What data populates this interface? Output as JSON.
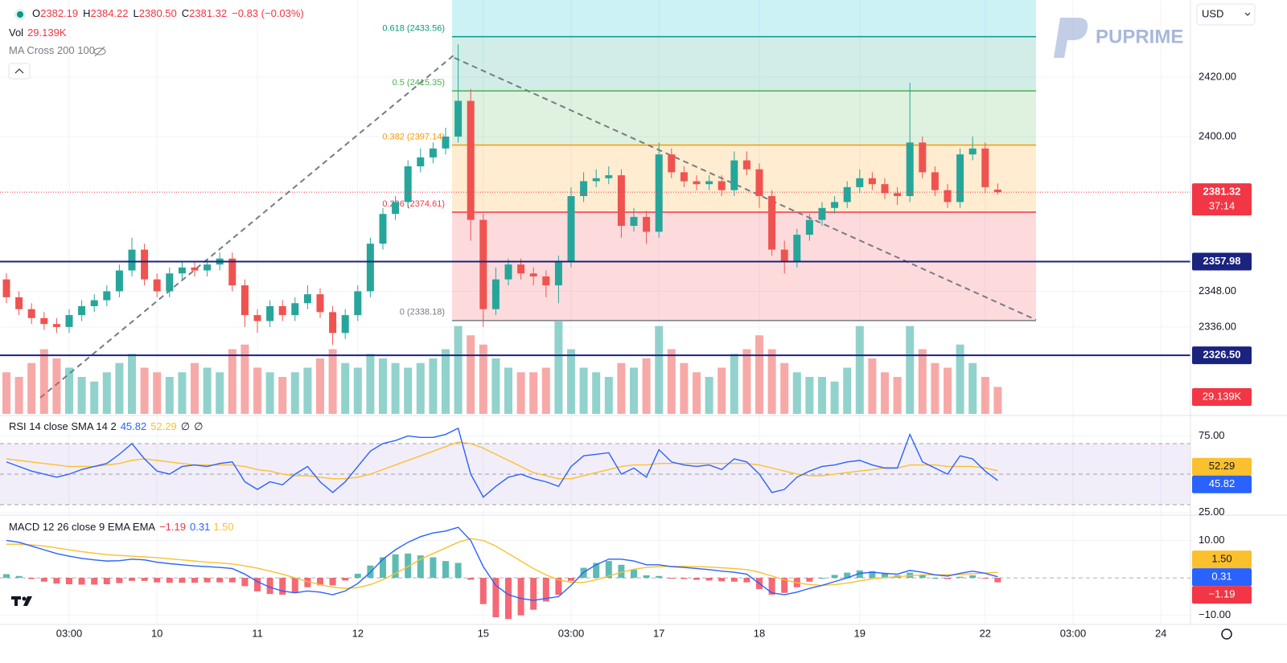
{
  "header": {
    "items": [
      {
        "label": "O",
        "value": "2382.19"
      },
      {
        "label": "H",
        "value": "2384.22"
      },
      {
        "label": "L",
        "value": "2380.50"
      },
      {
        "label": "C",
        "value": "2381.32"
      }
    ],
    "change": "−0.83 (−0.03%)",
    "indicator": "MA Cross 200 100",
    "currency": "USD",
    "brand": "PUPRIME"
  },
  "chart_data": [
    {
      "type": "candlestick",
      "up_color": "#26a69a",
      "down_color": "#ef5350",
      "categories": [
        null,
        null,
        null,
        null,
        null,
        "03:00",
        null,
        null,
        null,
        null,
        null,
        null,
        "10",
        null,
        null,
        null,
        null,
        null,
        null,
        null,
        "11",
        null,
        null,
        null,
        null,
        null,
        null,
        null,
        "12",
        null,
        null,
        null,
        null,
        null,
        null,
        null,
        null,
        null,
        "15",
        null,
        null,
        null,
        null,
        null,
        null,
        "03:00",
        null,
        null,
        null,
        null,
        null,
        null,
        "17",
        null,
        null,
        null,
        null,
        null,
        null,
        null,
        "18",
        null,
        null,
        null,
        null,
        null,
        null,
        null,
        "19",
        null,
        null,
        null,
        null,
        null,
        null,
        null,
        null,
        null,
        "22",
        null
      ],
      "future_labels": [
        "03:00",
        "24"
      ],
      "open": [
        2352,
        2346,
        2342,
        2339,
        2337,
        2336,
        2340,
        2343,
        2345,
        2348,
        2355,
        2362,
        2352,
        2348,
        2354,
        2356,
        2355,
        2357,
        2359,
        2350,
        2340,
        2338,
        2343,
        2340,
        2344,
        2347,
        2341,
        2334,
        2340,
        2348,
        2364,
        2374,
        2378,
        2390,
        2393,
        2396,
        2400,
        2412,
        2372,
        2342,
        2352,
        2357,
        2354,
        2353,
        2350,
        2358,
        2380,
        2385,
        2386,
        2387,
        2370,
        2373,
        2368,
        2394,
        2388,
        2385,
        2384,
        2385,
        2382,
        2392,
        2389,
        2380,
        2362,
        2358,
        2367,
        2372,
        2376,
        2378,
        2383,
        2386,
        2384,
        2381,
        2380,
        2398,
        2388,
        2382,
        2378,
        2394,
        2396,
        2382.19
      ],
      "high": [
        2354,
        2348,
        2344,
        2341,
        2339,
        2342,
        2345,
        2347,
        2350,
        2357,
        2366,
        2364,
        2354,
        2356,
        2358,
        2358,
        2359,
        2361,
        2361,
        2352,
        2342,
        2345,
        2345,
        2346,
        2350,
        2349,
        2343,
        2342,
        2350,
        2366,
        2376,
        2380,
        2392,
        2396,
        2398,
        2403,
        2431,
        2416,
        2374,
        2356,
        2359,
        2359,
        2356,
        2355,
        2360,
        2383,
        2388,
        2389,
        2390,
        2389,
        2376,
        2375,
        2398,
        2396,
        2390,
        2387,
        2387,
        2387,
        2395,
        2395,
        2391,
        2382,
        2365,
        2369,
        2374,
        2378,
        2380,
        2385,
        2389,
        2388,
        2386,
        2383,
        2418,
        2400,
        2390,
        2384,
        2396,
        2400,
        2398,
        2384.22
      ],
      "low": [
        2344,
        2340,
        2337,
        2335,
        2334,
        2334,
        2338,
        2341,
        2343,
        2346,
        2353,
        2350,
        2346,
        2346,
        2352,
        2353,
        2353,
        2355,
        2348,
        2336,
        2334,
        2336,
        2338,
        2338,
        2342,
        2339,
        2330,
        2332,
        2338,
        2346,
        2362,
        2372,
        2376,
        2388,
        2391,
        2394,
        2398,
        2365,
        2336,
        2340,
        2350,
        2352,
        2350,
        2346,
        2344,
        2356,
        2378,
        2383,
        2384,
        2366,
        2368,
        2364,
        2366,
        2386,
        2383,
        2382,
        2382,
        2380,
        2380,
        2387,
        2376,
        2360,
        2354,
        2356,
        2365,
        2370,
        2374,
        2376,
        2381,
        2382,
        2379,
        2377,
        2378,
        2386,
        2380,
        2376,
        2376,
        2392,
        2381,
        2380.5
      ],
      "close": [
        2346,
        2342,
        2339,
        2337,
        2336,
        2340,
        2343,
        2345,
        2348,
        2355,
        2362,
        2352,
        2348,
        2354,
        2356,
        2355,
        2357,
        2359,
        2350,
        2340,
        2338,
        2343,
        2340,
        2344,
        2347,
        2341,
        2334,
        2340,
        2348,
        2364,
        2374,
        2378,
        2390,
        2393,
        2396,
        2400,
        2412,
        2372,
        2342,
        2352,
        2357,
        2354,
        2353,
        2350,
        2358,
        2380,
        2385,
        2386,
        2387,
        2370,
        2373,
        2368,
        2394,
        2388,
        2385,
        2384,
        2385,
        2382,
        2392,
        2389,
        2380,
        2362,
        2358,
        2367,
        2372,
        2376,
        2378,
        2383,
        2386,
        2384,
        2381,
        2380,
        2398,
        2388,
        2382,
        2378,
        2394,
        2396,
        2383,
        2381.32
      ],
      "ylim": [
        2306.8,
        2445.9
      ],
      "yticks": [
        {
          "value": 2420,
          "label": "2420.00"
        },
        {
          "value": 2400,
          "label": "2400.00"
        },
        {
          "value": 2348,
          "label": "2348.00"
        },
        {
          "value": 2336,
          "label": "2336.00"
        }
      ],
      "fib_levels": [
        {
          "label": "0.618 (2433.56)",
          "value": 2433.56,
          "color": "#089981"
        },
        {
          "label": "0.5 (2415.35)",
          "value": 2415.35,
          "color": "#4caf50"
        },
        {
          "label": "0.382 (2397.14)",
          "value": 2397.14,
          "color": "#ff9800"
        },
        {
          "label": "0.236 (2374.61)",
          "value": 2374.61,
          "color": "#f23645"
        },
        {
          "label": "0 (2338.18)",
          "value": 2338.18,
          "color": "#787b86"
        }
      ],
      "price_lines": [
        {
          "value": 2357.98,
          "label": "2357.98",
          "color": "#1a237e"
        },
        {
          "value": 2326.5,
          "label": "2326.50",
          "color": "#1a237e"
        }
      ],
      "current": {
        "value": 2381.32,
        "label": "2381.32",
        "countdown": "37:14",
        "color": "#f23645"
      }
    },
    {
      "type": "bar",
      "title": "Vol",
      "value_label": "29.139K",
      "color": "#f23645",
      "values": [
        45,
        40,
        55,
        70,
        60,
        50,
        40,
        35,
        45,
        55,
        65,
        50,
        45,
        40,
        45,
        55,
        50,
        45,
        70,
        75,
        50,
        45,
        40,
        45,
        50,
        60,
        70,
        55,
        50,
        65,
        60,
        55,
        50,
        55,
        60,
        70,
        95,
        85,
        75,
        60,
        50,
        45,
        45,
        50,
        100,
        70,
        50,
        45,
        40,
        55,
        50,
        60,
        95,
        70,
        55,
        45,
        40,
        50,
        65,
        70,
        85,
        70,
        55,
        45,
        40,
        40,
        35,
        50,
        95,
        60,
        45,
        40,
        95,
        70,
        55,
        50,
        75,
        55,
        40,
        29.139
      ]
    },
    {
      "type": "line",
      "title": "RSI 14 close SMA 14 2",
      "extras": [
        "∅",
        "∅"
      ],
      "ylim": [
        23.7,
        86.8
      ],
      "yticks": [
        {
          "value": 75,
          "label": "75.00"
        },
        {
          "value": 25,
          "label": "25.00"
        }
      ],
      "bands": [
        70,
        50,
        30
      ],
      "series": [
        {
          "color": "#2962ff",
          "value_label": "45.82",
          "values": [
            58,
            55,
            52,
            50,
            48,
            50,
            53,
            55,
            57,
            63,
            70,
            60,
            52,
            50,
            55,
            56,
            55,
            57,
            58,
            45,
            40,
            45,
            43,
            50,
            55,
            45,
            38,
            45,
            55,
            65,
            70,
            72,
            75,
            74,
            74,
            76,
            80,
            50,
            35,
            42,
            48,
            50,
            47,
            45,
            42,
            55,
            62,
            63,
            64,
            50,
            54,
            48,
            66,
            58,
            56,
            55,
            56,
            53,
            60,
            58,
            50,
            38,
            40,
            48,
            52,
            55,
            56,
            58,
            59,
            56,
            54,
            54,
            76,
            58,
            54,
            50,
            62,
            60,
            52,
            45.82
          ]
        },
        {
          "color": "#fbc02d",
          "value_label": "52.29",
          "values": [
            60,
            59,
            58,
            57,
            56,
            55,
            55,
            55,
            56,
            57,
            59,
            60,
            59,
            58,
            57,
            56,
            56,
            56,
            56,
            55,
            53,
            52,
            50,
            49,
            49,
            48,
            47,
            47,
            48,
            50,
            53,
            56,
            59,
            62,
            65,
            68,
            71,
            70,
            67,
            63,
            59,
            55,
            51,
            49,
            47,
            47,
            49,
            51,
            53,
            55,
            56,
            56,
            57,
            57,
            57,
            57,
            57,
            57,
            57,
            57,
            56,
            54,
            52,
            50,
            49,
            49,
            50,
            51,
            52,
            53,
            54,
            54,
            56,
            56,
            56,
            55,
            55,
            55,
            54,
            52.29
          ]
        }
      ]
    },
    {
      "type": "macd",
      "title": "MACD 12 26 close 9 EMA EMA",
      "ylim": [
        -12,
        15.9
      ],
      "yticks": [
        {
          "value": 10,
          "label": "10.00"
        },
        {
          "value": -10,
          "label": "−10.00"
        }
      ],
      "series": [
        {
          "color": "#f23645",
          "up_color": "#26a69a",
          "value_label": "−1.19",
          "values": [
            1,
            0.5,
            -0.3,
            -1,
            -1.5,
            -1.7,
            -1.8,
            -1.8,
            -1.7,
            -1.4,
            -0.8,
            -0.8,
            -1.2,
            -1.3,
            -1.3,
            -1.3,
            -1.2,
            -1.2,
            -1.2,
            -2.2,
            -3.6,
            -4.3,
            -4.5,
            -4,
            -2.5,
            -2,
            -2,
            -0.7,
            1.1,
            3.3,
            5.5,
            6.3,
            6.5,
            6,
            5.5,
            4.5,
            4,
            -0.5,
            -7,
            -10.5,
            -11,
            -10,
            -8.5,
            -6.3,
            -4.5,
            -0.8,
            2.7,
            4,
            4.5,
            3.5,
            2.2,
            0.7,
            0.5,
            -0.1,
            -0.3,
            -0.5,
            -0.7,
            -0.9,
            -1,
            -1.2,
            -3,
            -4.5,
            -4,
            -2.5,
            -1,
            0,
            0.8,
            1.4,
            2,
            1.8,
            1.1,
            0.7,
            1.4,
            0.7,
            0,
            -0.3,
            0.3,
            0.7,
            -0.1,
            -1.19
          ]
        },
        {
          "color": "#2962ff",
          "value_label": "0.31",
          "values": [
            10,
            9.5,
            8.5,
            7.5,
            6.5,
            5.8,
            5.2,
            4.8,
            4.5,
            4.6,
            5,
            4.8,
            4.2,
            3.8,
            3.5,
            3.2,
            3,
            2.8,
            2.5,
            1,
            -1,
            -2.5,
            -3.5,
            -4,
            -3.5,
            -3.8,
            -4.5,
            -3.5,
            -1.5,
            1.5,
            5,
            7.5,
            9.5,
            11,
            12,
            12.5,
            13.5,
            10,
            3,
            -2,
            -4.5,
            -5.5,
            -6,
            -5.5,
            -5,
            -2,
            1.5,
            3.5,
            5,
            5,
            4.5,
            3.5,
            3.5,
            3,
            2.8,
            2.5,
            2.2,
            1.8,
            1.5,
            1,
            -1.5,
            -4,
            -4.5,
            -3.8,
            -2.8,
            -2,
            -1,
            0,
            1.2,
            1.5,
            1.2,
            1,
            2,
            1.5,
            0.8,
            0.5,
            1.2,
            1.8,
            1.2,
            0.31
          ]
        },
        {
          "color": "#fbc02d",
          "value_label": "1.50",
          "values": [
            9,
            9,
            8.8,
            8.5,
            8,
            7.5,
            7,
            6.6,
            6.2,
            6,
            5.8,
            5.6,
            5.4,
            5.1,
            4.8,
            4.5,
            4.2,
            4,
            3.7,
            3.2,
            2.6,
            1.8,
            1,
            0,
            -1,
            -1.8,
            -2.5,
            -2.8,
            -2.6,
            -1.8,
            -0.5,
            1.2,
            3,
            5,
            6.5,
            8,
            9.5,
            10.5,
            10,
            8.5,
            6.5,
            4.5,
            2.5,
            0.8,
            -0.5,
            -1.2,
            -1.2,
            -0.5,
            0.5,
            1.5,
            2.3,
            2.8,
            3,
            3.1,
            3.1,
            3,
            2.9,
            2.7,
            2.5,
            2.2,
            1.5,
            0.5,
            -0.5,
            -1.3,
            -1.8,
            -2,
            -1.8,
            -1.4,
            -0.8,
            -0.3,
            0.1,
            0.3,
            0.6,
            0.8,
            0.8,
            0.8,
            0.9,
            1.1,
            1.3,
            1.5
          ]
        }
      ]
    }
  ]
}
